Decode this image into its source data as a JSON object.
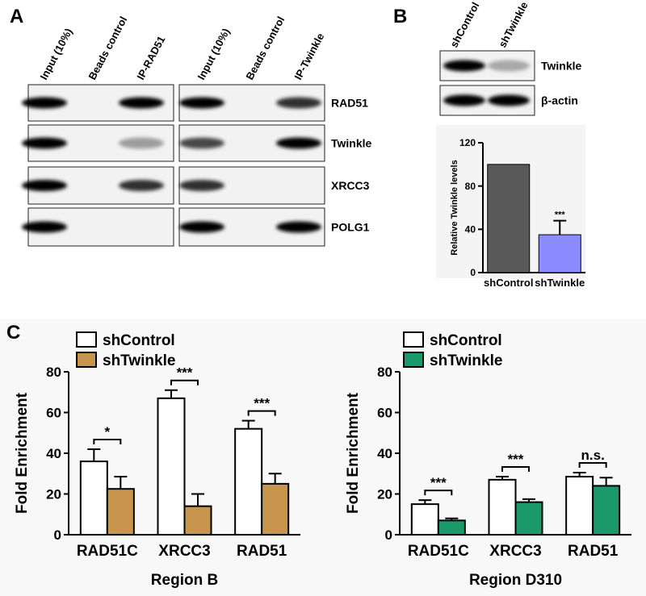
{
  "panel_labels": [
    "A",
    "B",
    "C"
  ],
  "blot_a": {
    "lanes_left": [
      "Input (10%)",
      "Beads control",
      "IP-RAD51"
    ],
    "lanes_right": [
      "Input (10%)",
      "Beads control",
      "IP-Twinkle"
    ],
    "rows": [
      "RAD51",
      "Twinkle",
      "XRCC3",
      "POLG1"
    ]
  },
  "blot_b": {
    "lanes": [
      "shControl",
      "shTwinkle"
    ],
    "rows": [
      "Twinkle",
      "β-actin"
    ]
  },
  "chart_data": [
    {
      "type": "bar",
      "ylabel": "Relative Twinkle levels",
      "categories": [
        "shControl",
        "shTwinkle"
      ],
      "values": [
        100,
        35
      ],
      "errors": [
        null,
        13
      ],
      "colors": [
        "#595959",
        "#8c8cff"
      ],
      "value_annotations": [
        null,
        "***"
      ],
      "ylim": [
        0,
        120
      ],
      "yticks": [
        0,
        40,
        80,
        120
      ]
    },
    {
      "type": "grouped-bar",
      "xlabel": "Region B",
      "ylabel": "Fold Enrichment",
      "categories": [
        "RAD51C",
        "XRCC3",
        "RAD51"
      ],
      "series": [
        {
          "name": "shControl",
          "color": "#ffffff",
          "values": [
            36,
            67,
            52
          ],
          "errors": [
            6,
            4,
            4
          ]
        },
        {
          "name": "shTwinkle",
          "color": "#c8954f",
          "values": [
            22.5,
            14,
            25
          ],
          "errors": [
            6,
            6,
            5
          ]
        }
      ],
      "significance": [
        "*",
        "***",
        "***"
      ],
      "ylim": [
        0,
        80
      ],
      "yticks": [
        0,
        20,
        40,
        60,
        80
      ]
    },
    {
      "type": "grouped-bar",
      "xlabel": "Region D310",
      "ylabel": "Fold Enrichment",
      "categories": [
        "RAD51C",
        "XRCC3",
        "RAD51"
      ],
      "series": [
        {
          "name": "shControl",
          "color": "#ffffff",
          "values": [
            15,
            27,
            28.5
          ],
          "errors": [
            2,
            1.5,
            2
          ]
        },
        {
          "name": "shTwinkle",
          "color": "#1a9a6a",
          "values": [
            7,
            16,
            24
          ],
          "errors": [
            1,
            1.5,
            4
          ]
        }
      ],
      "significance": [
        "***",
        "***",
        "n.s."
      ],
      "ylim": [
        0,
        80
      ],
      "yticks": [
        0,
        20,
        40,
        60,
        80
      ]
    }
  ]
}
